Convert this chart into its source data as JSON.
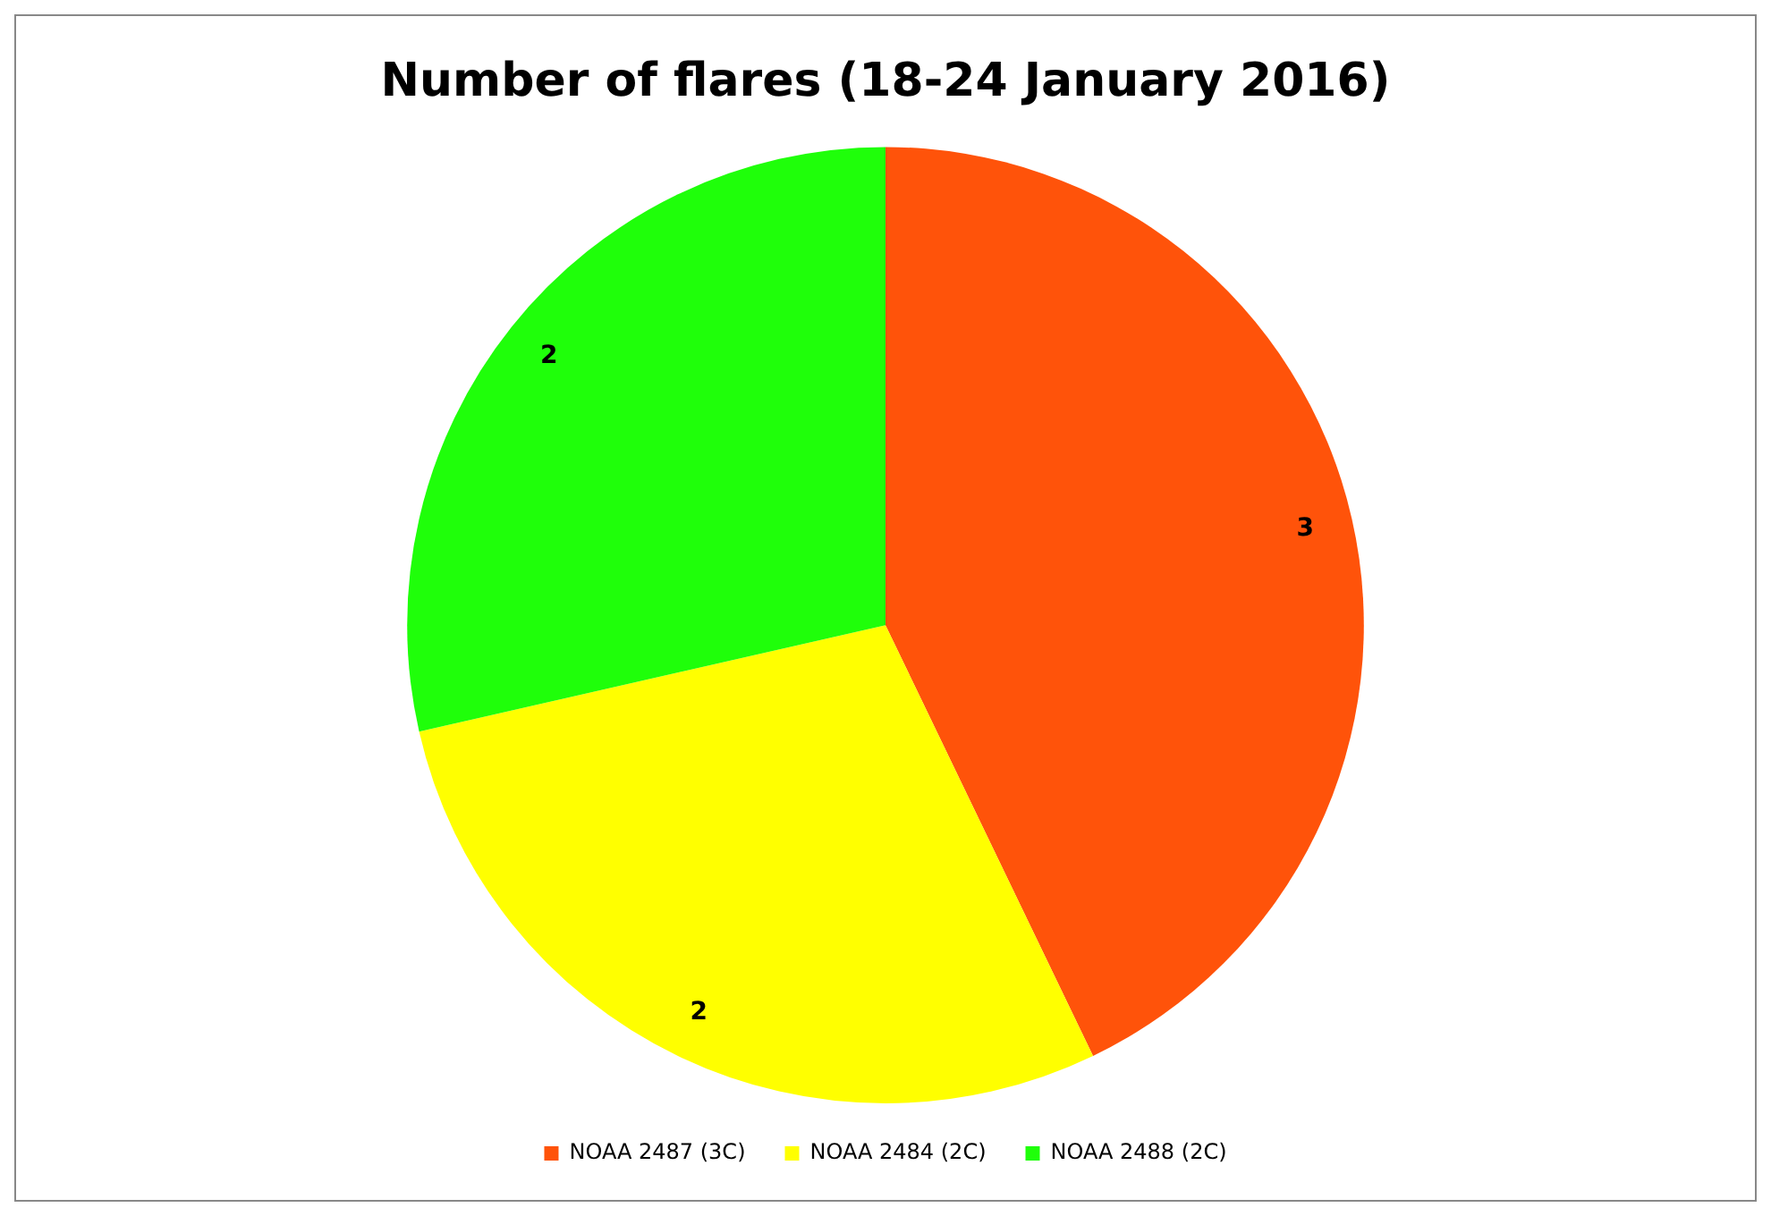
{
  "chart_data": {
    "type": "pie",
    "title": "Number of flares (18-24 January 2016)",
    "categories": [
      "NOAA 2487 (3C)",
      "NOAA 2484 (2C)",
      "NOAA 2488 (2C)"
    ],
    "values": [
      3,
      2,
      2
    ],
    "colors": [
      "#ff530a",
      "#ffff00",
      "#1fff0a"
    ],
    "data_labels": true,
    "legend": "bottom"
  }
}
